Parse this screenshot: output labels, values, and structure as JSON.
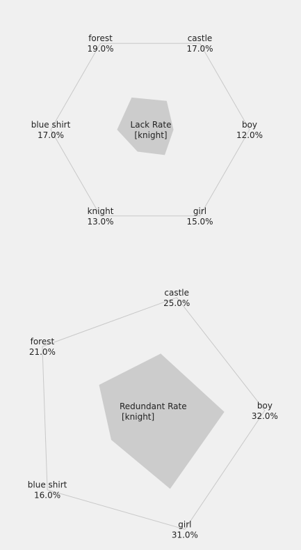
{
  "chart_data": [
    {
      "type": "radar",
      "title": "Lack Rate",
      "subtitle": "[knight]",
      "unit": "%",
      "axes": [
        "castle",
        "boy",
        "girl",
        "knight",
        "blue shirt",
        "forest"
      ],
      "values": [
        17.0,
        12.0,
        15.0,
        13.0,
        17.0,
        19.0
      ],
      "value_labels": [
        "17.0%",
        "12.0%",
        "15.0%",
        "13.0%",
        "17.0%",
        "19.0%"
      ],
      "grid": false,
      "colors": {
        "outline": "#c8c8c8",
        "fill": "#cccccc"
      }
    },
    {
      "type": "radar",
      "title": "Redundant Rate",
      "subtitle": "[knight]",
      "unit": "%",
      "axes": [
        "castle",
        "boy",
        "girl",
        "blue shirt",
        "forest"
      ],
      "values": [
        25.0,
        32.0,
        31.0,
        16.0,
        21.0
      ],
      "value_labels": [
        "25.0%",
        "32.0%",
        "31.0%",
        "16.0%",
        "21.0%"
      ],
      "grid": false,
      "colors": {
        "outline": "#c8c8c8",
        "fill": "#cccccc"
      }
    }
  ]
}
